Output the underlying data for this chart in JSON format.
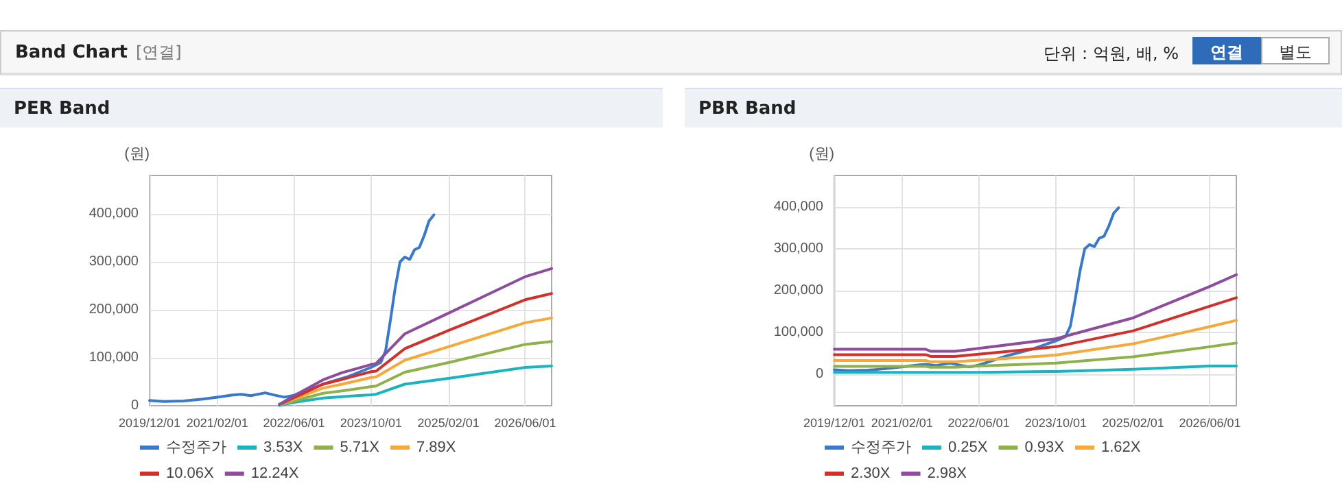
{
  "chart_data": [
    {
      "type": "other",
      "title": "Band Chart",
      "annotations": [
        "[연결]",
        "단위 : 억원, 배, %",
        "연결",
        "별도"
      ]
    },
    {
      "type": "line",
      "title": "PER Band",
      "ylabel": "(원)",
      "xlim": [
        "2019-12-01",
        "2026-11-15"
      ],
      "ylim": [
        0,
        480000
      ],
      "xticks": [
        {
          "value": "2019-12-01",
          "label": "2019/12/01"
        },
        {
          "value": "2021-02-01",
          "label": "2021/02/01"
        },
        {
          "value": "2022-06-01",
          "label": "2022/06/01"
        },
        {
          "value": "2023-10-01",
          "label": "2023/10/01"
        },
        {
          "value": "2025-02-01",
          "label": "2025/02/01"
        },
        {
          "value": "2026-06-01",
          "label": "2026/06/01"
        }
      ],
      "yticks": [
        {
          "value": 0,
          "label": "0"
        },
        {
          "value": 100000,
          "label": "100,000"
        },
        {
          "value": 200000,
          "label": "200,000"
        },
        {
          "value": 300000,
          "label": "300,000"
        },
        {
          "value": 400000,
          "label": "400,000"
        }
      ],
      "grid": true,
      "legend": "bottom left",
      "marker": "none",
      "line_style": "solid",
      "series": [
        {
          "name": "수정주가",
          "color": "#3a78c9",
          "x": [
            "2019-12",
            "2020-03",
            "2020-07",
            "2020-11",
            "2021-02",
            "2021-05",
            "2021-07",
            "2021-09",
            "2021-12",
            "2022-02",
            "2022-04",
            "2022-06",
            "2022-12",
            "2023-05",
            "2023-10",
            "2023-12",
            "2024-01",
            "2024-02",
            "2024-03",
            "2024-04",
            "2024-05",
            "2024-06",
            "2024-07",
            "2024-08",
            "2024-09",
            "2024-10",
            "2024-11"
          ],
          "values": [
            11000,
            9000,
            10000,
            14000,
            18000,
            22000,
            24000,
            21000,
            27000,
            22000,
            18000,
            22000,
            45000,
            60000,
            80000,
            90000,
            115000,
            180000,
            245000,
            300000,
            310000,
            305000,
            325000,
            330000,
            355000,
            385000,
            398000
          ]
        },
        {
          "name": "3.53X",
          "color": "#1bb3bf",
          "x": [
            "2022-03",
            "2022-06",
            "2022-12",
            "2023-04",
            "2023-10",
            "2023-11",
            "2024-05",
            "2025-02",
            "2026-06",
            "2026-11-15"
          ],
          "values": [
            1000,
            7000,
            16000,
            19000,
            23000,
            24000,
            45000,
            57000,
            80000,
            83000
          ]
        },
        {
          "name": "5.71X",
          "color": "#8fb14a",
          "x": [
            "2022-03",
            "2022-06",
            "2022-12",
            "2023-04",
            "2023-10",
            "2023-11",
            "2024-05",
            "2025-02",
            "2026-06",
            "2026-11-15"
          ],
          "values": [
            2000,
            10000,
            26000,
            31000,
            40000,
            41000,
            70000,
            90000,
            128000,
            134000
          ]
        },
        {
          "name": "7.89X",
          "color": "#f5a93a",
          "x": [
            "2022-03",
            "2022-06",
            "2022-12",
            "2023-04",
            "2023-10",
            "2023-11",
            "2024-05",
            "2025-02",
            "2026-06",
            "2026-11-15"
          ],
          "values": [
            3000,
            14000,
            37000,
            45000,
            59000,
            60000,
            95000,
            123000,
            173000,
            183000
          ]
        },
        {
          "name": "10.06X",
          "color": "#d0312d",
          "x": [
            "2022-03",
            "2022-06",
            "2022-12",
            "2023-04",
            "2023-10",
            "2023-11",
            "2024-05",
            "2025-02",
            "2026-06",
            "2026-11-15"
          ],
          "values": [
            3000,
            17000,
            45000,
            55000,
            71000,
            72000,
            119000,
            157000,
            221000,
            234000
          ]
        },
        {
          "name": "12.24X",
          "color": "#8e4c9c",
          "x": [
            "2022-03",
            "2022-06",
            "2022-12",
            "2023-04",
            "2023-10",
            "2023-11",
            "2024-05",
            "2025-02",
            "2026-06",
            "2026-11-15"
          ],
          "values": [
            3000,
            21000,
            54000,
            69000,
            86000,
            88000,
            150000,
            193000,
            269000,
            286000
          ]
        }
      ]
    },
    {
      "type": "line",
      "title": "PBR Band",
      "ylabel": "(원)",
      "xlim": [
        "2019-12-01",
        "2026-11-15"
      ],
      "ylim": [
        -75000,
        475000
      ],
      "xticks": [
        {
          "value": "2019-12-01",
          "label": "2019/12/01"
        },
        {
          "value": "2021-02-01",
          "label": "2021/02/01"
        },
        {
          "value": "2022-06-01",
          "label": "2022/06/01"
        },
        {
          "value": "2023-10-01",
          "label": "2023/10/01"
        },
        {
          "value": "2025-02-01",
          "label": "2025/02/01"
        },
        {
          "value": "2026-06-01",
          "label": "2026/06/01"
        }
      ],
      "yticks": [
        {
          "value": 0,
          "label": "0"
        },
        {
          "value": 100000,
          "label": "100,000"
        },
        {
          "value": 200000,
          "label": "200,000"
        },
        {
          "value": 300000,
          "label": "300,000"
        },
        {
          "value": 400000,
          "label": "400,000"
        }
      ],
      "grid": true,
      "legend": "bottom left",
      "marker": "none",
      "line_style": "solid",
      "series": [
        {
          "name": "수정주가",
          "color": "#3a78c9",
          "x": [
            "2019-12",
            "2020-03",
            "2020-07",
            "2020-11",
            "2021-02",
            "2021-05",
            "2021-07",
            "2021-09",
            "2021-12",
            "2022-02",
            "2022-04",
            "2022-06",
            "2022-12",
            "2023-05",
            "2023-10",
            "2023-12",
            "2024-01",
            "2024-02",
            "2024-03",
            "2024-04",
            "2024-05",
            "2024-06",
            "2024-07",
            "2024-08",
            "2024-09",
            "2024-10",
            "2024-11"
          ],
          "values": [
            11000,
            9000,
            10000,
            14000,
            18000,
            22000,
            24000,
            21000,
            27000,
            22000,
            18000,
            22000,
            45000,
            60000,
            80000,
            90000,
            115000,
            180000,
            245000,
            300000,
            310000,
            305000,
            325000,
            330000,
            355000,
            385000,
            398000
          ]
        },
        {
          "name": "0.25X",
          "color": "#1bb3bf",
          "x": [
            "2019-12",
            "2021-07",
            "2021-08",
            "2022-01",
            "2022-06",
            "2023-10",
            "2025-02",
            "2026-06",
            "2026-11-15"
          ],
          "values": [
            5000,
            5000,
            5000,
            5000,
            5000,
            7000,
            12000,
            20000,
            20000
          ]
        },
        {
          "name": "0.93X",
          "color": "#8fb14a",
          "x": [
            "2019-12",
            "2021-07",
            "2021-08",
            "2022-01",
            "2022-06",
            "2023-10",
            "2025-02",
            "2026-06",
            "2026-11-15"
          ],
          "values": [
            19000,
            19000,
            17000,
            17000,
            20000,
            27000,
            42000,
            66000,
            75000
          ]
        },
        {
          "name": "1.62X",
          "color": "#f5a93a",
          "x": [
            "2019-12",
            "2021-07",
            "2021-08",
            "2022-01",
            "2022-06",
            "2023-10",
            "2025-02",
            "2026-06",
            "2026-11-15"
          ],
          "values": [
            33000,
            33000,
            30000,
            30000,
            34000,
            46000,
            73000,
            114000,
            129000
          ]
        },
        {
          "name": "2.30X",
          "color": "#d0312d",
          "x": [
            "2019-12",
            "2021-07",
            "2021-08",
            "2022-01",
            "2022-06",
            "2023-10",
            "2025-02",
            "2026-06",
            "2026-11-15"
          ],
          "values": [
            47000,
            47000,
            43000,
            43000,
            48000,
            66000,
            104000,
            163000,
            183000
          ]
        },
        {
          "name": "2.98X",
          "color": "#8e4c9c",
          "x": [
            "2019-12",
            "2021-07",
            "2021-08",
            "2022-01",
            "2022-06",
            "2023-10",
            "2025-02",
            "2026-06",
            "2026-11-15"
          ],
          "values": [
            60000,
            60000,
            55000,
            55000,
            62000,
            85000,
            135000,
            210000,
            238000
          ]
        }
      ]
    }
  ]
}
